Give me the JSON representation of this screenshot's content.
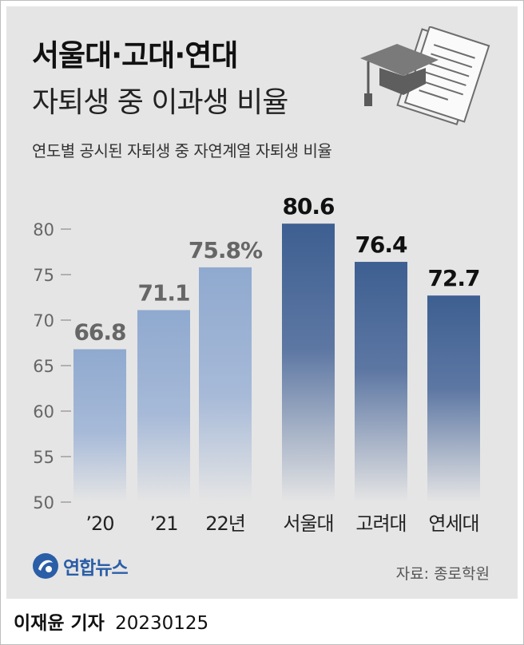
{
  "header": {
    "title_line1": "서울대·고대·연대",
    "title_line2": "자퇴생 중 이과생 비율",
    "subtitle": "연도별 공시된 자퇴생 중 자연계열 자퇴생 비율"
  },
  "icons": {
    "illustration": "graduation-cap-and-papers",
    "logo": "yonhap-logo"
  },
  "chart_data": {
    "type": "bar",
    "categories": [
      "’20",
      "’21",
      "22년",
      "서울대",
      "고려대",
      "연세대"
    ],
    "values": [
      66.8,
      71.1,
      75.8,
      80.6,
      76.4,
      72.7
    ],
    "value_labels": [
      "66.8",
      "71.1",
      "75.8%",
      "80.6",
      "76.4",
      "72.7"
    ],
    "ylim": [
      50,
      80
    ],
    "yticks": [
      50,
      55,
      60,
      65,
      70,
      75,
      80
    ],
    "grid": false,
    "colors": {
      "year_bars": "#8fa9cf",
      "school_bars": "#3d5f91",
      "year_labels": "#666666",
      "school_labels": "#111111"
    }
  },
  "footer": {
    "logo_text": "연합뉴스",
    "source": "자료: 종로학원",
    "author": "이재윤 기자",
    "date": "20230125"
  }
}
